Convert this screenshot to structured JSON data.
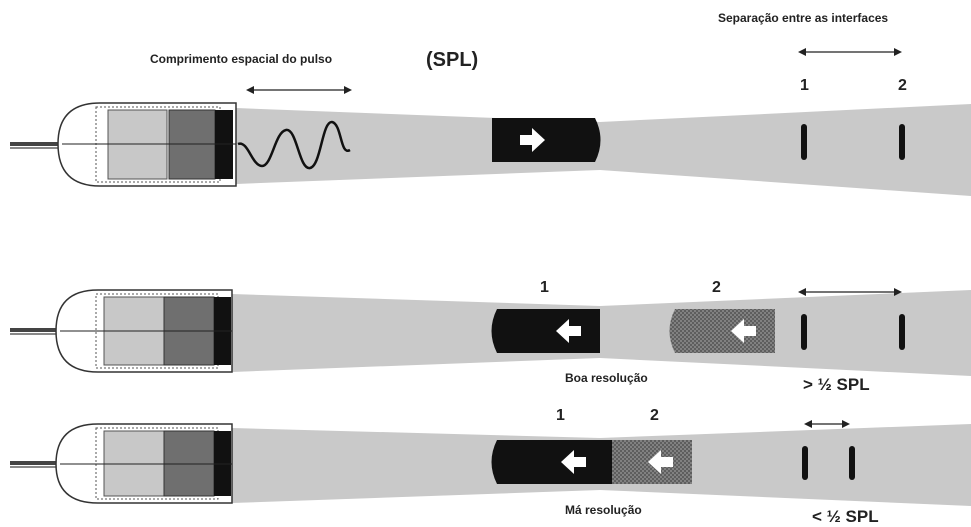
{
  "labels": {
    "spl_title": "Comprimento espacial do pulso",
    "spl_abbrev": "(SPL)",
    "separation_title": "Separação entre as interfaces",
    "interface_1": "1",
    "interface_2": "2",
    "echo_1": "1",
    "echo_2": "2",
    "good_resolution": "Boa resolução",
    "bad_resolution": "Má resolução",
    "greater_half_spl": "> ½ SPL",
    "less_half_spl": "< ½ SPL"
  },
  "colors": {
    "beam": "#c9c9c9",
    "pulse": "#111111",
    "echo_textured": "#6b6b6b",
    "element_light": "#c8c8c8",
    "element_dark": "#6f6f6f"
  },
  "icons": [
    "arrow-right-icon",
    "arrow-left-icon",
    "double-arrow-icon",
    "transducer-icon"
  ]
}
